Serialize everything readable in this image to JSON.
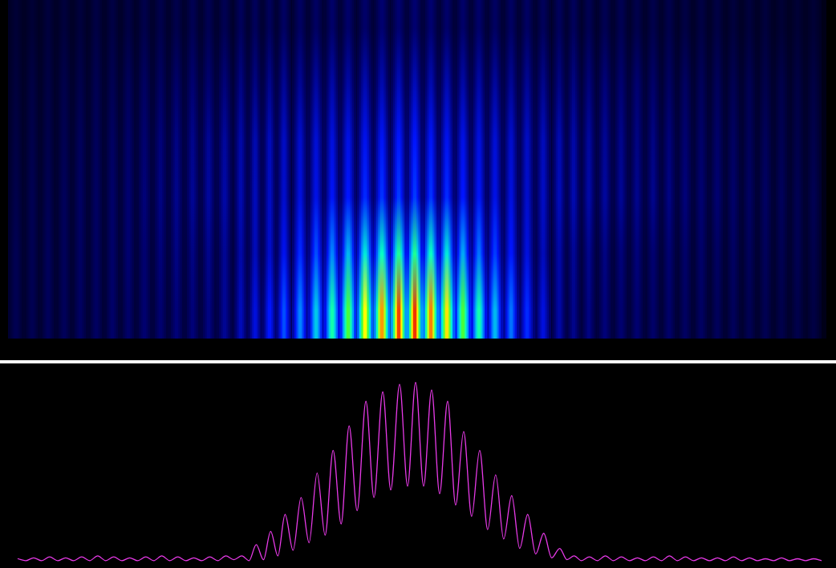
{
  "chart_data": [
    {
      "type": "heatmap",
      "x": [
        10,
        30,
        50,
        70,
        90,
        110,
        130,
        150,
        170,
        190,
        210,
        230,
        250,
        270,
        290,
        308,
        326,
        344,
        364,
        384,
        404,
        424,
        445,
        466,
        487,
        507,
        527,
        547,
        567,
        587,
        607,
        627,
        647,
        667,
        687,
        705,
        724,
        744,
        764,
        784,
        804,
        824,
        844,
        864,
        884,
        904,
        924,
        944,
        964,
        984,
        1004
      ],
      "y": [
        35,
        105,
        175,
        245,
        315,
        385
      ],
      "cells": [
        [
          8,
          8,
          9,
          9,
          10,
          10,
          11,
          11,
          12,
          12,
          13,
          13,
          14,
          16,
          20,
          24,
          28,
          34,
          40,
          48,
          58,
          68,
          80,
          88,
          95,
          96,
          90,
          82,
          68,
          58,
          46,
          38,
          30,
          24,
          18,
          15,
          14,
          13,
          12,
          12,
          11,
          11,
          10,
          10,
          9,
          9,
          8,
          8,
          7,
          7,
          6
        ],
        [
          8,
          8,
          9,
          9,
          10,
          10,
          11,
          12,
          12,
          13,
          14,
          14,
          15,
          16,
          18,
          20,
          22,
          26,
          30,
          34,
          40,
          46,
          52,
          56,
          60,
          60,
          56,
          52,
          44,
          38,
          32,
          28,
          24,
          20,
          18,
          16,
          15,
          14,
          13,
          13,
          12,
          12,
          11,
          11,
          10,
          10,
          9,
          9,
          8,
          8,
          7
        ],
        [
          7,
          8,
          8,
          9,
          10,
          10,
          11,
          12,
          13,
          14,
          15,
          16,
          17,
          18,
          19,
          20,
          21,
          22,
          24,
          25,
          27,
          28,
          30,
          31,
          32,
          32,
          31,
          30,
          28,
          27,
          25,
          24,
          22,
          21,
          20,
          19,
          18,
          17,
          16,
          15,
          15,
          14,
          13,
          12,
          12,
          11,
          10,
          10,
          9,
          8,
          8
        ],
        [
          6,
          7,
          7,
          8,
          9,
          9,
          10,
          11,
          12,
          13,
          14,
          15,
          16,
          17,
          18,
          19,
          20,
          21,
          22,
          23,
          24,
          25,
          26,
          27,
          28,
          28,
          27,
          26,
          25,
          24,
          23,
          22,
          21,
          20,
          19,
          18,
          17,
          16,
          15,
          14,
          14,
          13,
          12,
          11,
          11,
          10,
          9,
          9,
          8,
          7,
          7
        ],
        [
          5,
          6,
          6,
          7,
          7,
          8,
          8,
          9,
          10,
          10,
          11,
          12,
          12,
          13,
          14,
          14,
          15,
          16,
          16,
          17,
          18,
          18,
          19,
          19,
          20,
          20,
          19,
          19,
          18,
          18,
          17,
          16,
          16,
          15,
          14,
          14,
          13,
          13,
          12,
          12,
          11,
          10,
          10,
          9,
          9,
          8,
          8,
          7,
          7,
          6,
          6
        ],
        [
          4,
          4,
          5,
          5,
          5,
          6,
          6,
          6,
          7,
          7,
          7,
          8,
          8,
          8,
          9,
          9,
          9,
          10,
          10,
          10,
          11,
          11,
          11,
          12,
          12,
          12,
          12,
          11,
          11,
          11,
          10,
          10,
          10,
          9,
          9,
          9,
          8,
          8,
          8,
          7,
          7,
          7,
          6,
          6,
          6,
          5,
          5,
          5,
          4,
          4,
          4
        ]
      ],
      "color_range": [
        0,
        100
      ],
      "xlim": [
        0,
        1020
      ],
      "ylim": [
        0,
        420
      ],
      "grid": false,
      "tick_labels": false
    },
    {
      "type": "line",
      "x": [
        10,
        20,
        30,
        40,
        50,
        60,
        70,
        80,
        90,
        100,
        110,
        120,
        130,
        140,
        150,
        160,
        170,
        180,
        190,
        200,
        210,
        220,
        230,
        240,
        250,
        260,
        270,
        280,
        290,
        299,
        308,
        317,
        326,
        335,
        344,
        354,
        364,
        374,
        384,
        394,
        404,
        414,
        424,
        434,
        445,
        455,
        466,
        476,
        487,
        497,
        507,
        517,
        527,
        537,
        547,
        557,
        567,
        577,
        587,
        597,
        607,
        617,
        627,
        637,
        647,
        657,
        667,
        677,
        687,
        696,
        705,
        714,
        724,
        734,
        744,
        754,
        764,
        774,
        784,
        794,
        804,
        814,
        824,
        834,
        844,
        854,
        864,
        874,
        884,
        894,
        904,
        914,
        924,
        934,
        944,
        954,
        964,
        974,
        984,
        994,
        1004,
        1014
      ],
      "values": [
        1.5,
        0.5,
        2,
        0.5,
        2.5,
        0.5,
        2,
        0.5,
        2.5,
        0.5,
        3,
        0.5,
        2.5,
        0.5,
        2,
        0.5,
        2.5,
        0.5,
        3,
        0.5,
        2.5,
        0.5,
        2,
        0.5,
        2.5,
        0.5,
        3,
        1,
        3,
        0.5,
        9,
        1,
        16,
        3,
        25,
        6,
        34,
        10,
        47,
        14,
        59,
        20,
        72,
        27,
        85,
        34,
        90,
        38,
        94,
        40,
        95,
        40,
        91,
        36,
        85,
        30,
        69,
        24,
        59,
        17,
        46,
        12,
        35,
        7,
        25,
        4,
        15,
        2,
        7,
        1,
        3,
        0.5,
        2.5,
        0.5,
        3,
        0.5,
        2.5,
        0.5,
        2,
        0.5,
        2.5,
        0.5,
        3,
        0.5,
        2.5,
        0.5,
        2,
        0.5,
        2,
        0.5,
        2.5,
        0.5,
        2,
        0.5,
        1.5,
        0.5,
        2,
        0.5,
        1.5,
        0.5,
        1.5,
        0.5
      ],
      "color": "#e83ae8",
      "xlim": [
        0,
        1020
      ],
      "ylim": [
        0,
        100
      ],
      "grid": false,
      "tick_labels": false
    }
  ]
}
